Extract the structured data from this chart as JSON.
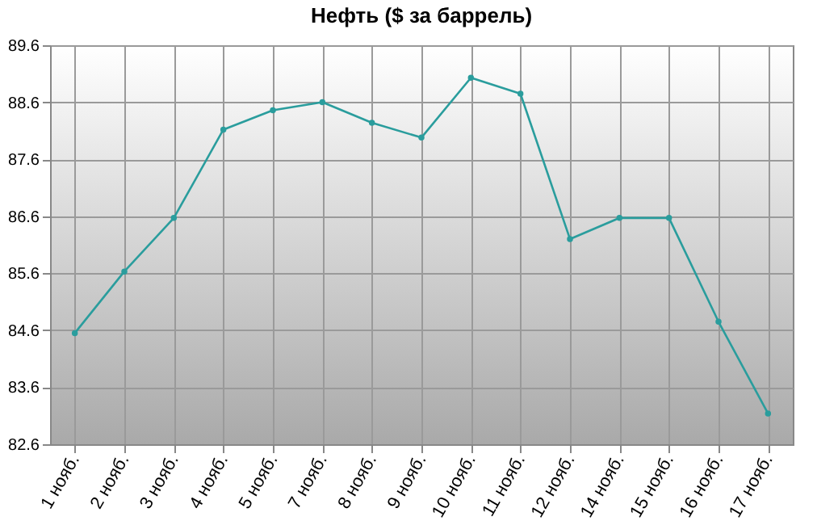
{
  "chart_data": {
    "type": "line",
    "title": "Нефть ($ за баррель)",
    "categories": [
      "1 нояб.",
      "2 нояб.",
      "3 нояб.",
      "4 нояб.",
      "5 нояб.",
      "7 нояб.",
      "8 нояб.",
      "9 нояб.",
      "10 нояб.",
      "11 нояб.",
      "12 нояб.",
      "14 нояб.",
      "15 нояб.",
      "16 нояб.",
      "17 нояб."
    ],
    "series": [
      {
        "color": "#2a9d9d",
        "values": [
          84.55,
          85.63,
          86.57,
          88.12,
          88.46,
          88.6,
          88.24,
          87.98,
          89.03,
          88.75,
          86.2,
          86.57,
          86.57,
          84.75,
          83.14
        ]
      }
    ],
    "ylim": [
      82.6,
      89.6
    ],
    "yticks": [
      82.6,
      83.6,
      84.6,
      85.6,
      86.6,
      87.6,
      88.6,
      89.6
    ],
    "grid": true,
    "marker": "circle",
    "legend": false
  }
}
